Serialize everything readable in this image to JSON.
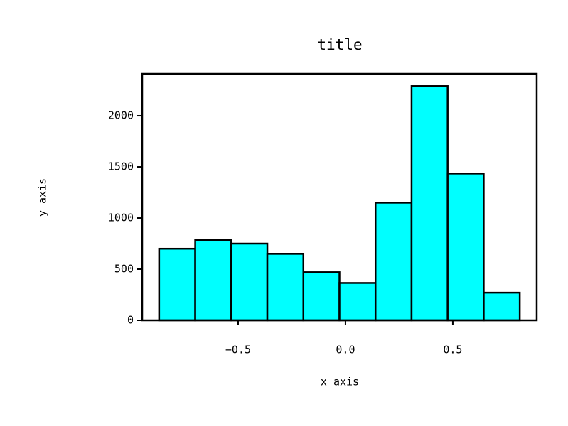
{
  "chart_data": {
    "type": "histogram",
    "title": "title",
    "xlabel": "x axis",
    "ylabel": "y axis",
    "bins": [
      -0.868,
      -0.7,
      -0.532,
      -0.364,
      -0.196,
      -0.028,
      0.14,
      0.308,
      0.476,
      0.644,
      0.812
    ],
    "values": [
      700,
      785,
      750,
      650,
      470,
      365,
      1150,
      2290,
      1435,
      270
    ],
    "color": "#00ffff",
    "edgecolor": "#000000",
    "xlim": [
      -0.947,
      0.891
    ],
    "ylim": [
      0,
      2410
    ],
    "xticks": [
      {
        "value": -0.5,
        "label": "−0.5"
      },
      {
        "value": 0,
        "label": "0.0"
      },
      0.5
    ],
    "yticks": [
      0,
      500,
      1000,
      1500,
      2000
    ],
    "grid": false
  }
}
